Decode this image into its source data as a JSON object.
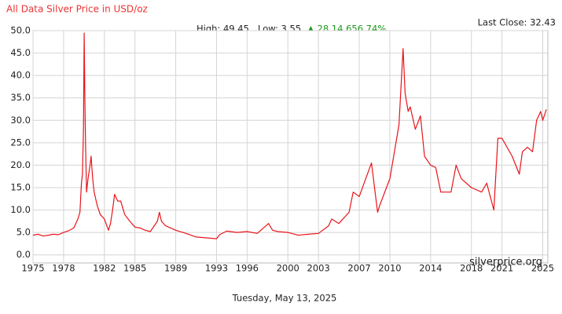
{
  "chart_data": {
    "type": "line",
    "title": "All Data Silver Price in USD/oz",
    "stats": {
      "high": "High: 49.45",
      "low": "Low: 3.55",
      "change": "▲ 28.14 656.74%"
    },
    "last_close": "Last Close: 32.43",
    "watermark": "silverprice.org",
    "date": "Tuesday, May 13, 2025",
    "x": [
      1975,
      1975.5,
      1976,
      1976.5,
      1977,
      1977.5,
      1978,
      1978.5,
      1979,
      1979.4,
      1979.6,
      1979.75,
      1979.85,
      1979.95,
      1980.02,
      1980.08,
      1980.15,
      1980.25,
      1980.4,
      1980.6,
      1980.7,
      1980.85,
      1981,
      1981.3,
      1981.6,
      1982,
      1982.4,
      1982.6,
      1982.8,
      1983,
      1983.3,
      1983.6,
      1984,
      1984.5,
      1985,
      1985.5,
      1986,
      1986.5,
      1987.2,
      1987.4,
      1987.6,
      1988,
      1989,
      1990,
      1991,
      1992,
      1993,
      1993.3,
      1994,
      1995,
      1996,
      1997,
      1998.1,
      1998.5,
      1999,
      2000,
      2001,
      2002,
      2003,
      2004,
      2004.3,
      2005,
      2006,
      2006.4,
      2007,
      2008.2,
      2008.8,
      2009,
      2010,
      2010.9,
      2011.3,
      2011.5,
      2011.8,
      2012,
      2012.5,
      2013,
      2013.4,
      2014,
      2014.5,
      2015,
      2016,
      2016.5,
      2017,
      2018,
      2019,
      2019.5,
      2020.2,
      2020.6,
      2021,
      2021.5,
      2022,
      2022.7,
      2023,
      2023.5,
      2024,
      2024.4,
      2024.8,
      2025,
      2025.35
    ],
    "series": [
      {
        "name": "Silver",
        "color": "#e8141a",
        "values": [
          4.4,
          4.6,
          4.2,
          4.4,
          4.6,
          4.5,
          5.0,
          5.4,
          6.0,
          8.0,
          9.5,
          16,
          18,
          28,
          49.45,
          36,
          25,
          14,
          17,
          20,
          22,
          17,
          14,
          11,
          9,
          8,
          5.5,
          7,
          10,
          13.5,
          12,
          12,
          9,
          7.5,
          6.2,
          6.0,
          5.5,
          5.2,
          7.5,
          9.5,
          7.5,
          6.5,
          5.5,
          4.8,
          4.0,
          3.8,
          3.6,
          4.5,
          5.3,
          5.0,
          5.2,
          4.8,
          7.0,
          5.5,
          5.2,
          5.0,
          4.4,
          4.6,
          4.8,
          6.5,
          8.0,
          7.0,
          9.5,
          14,
          13,
          20.5,
          9.5,
          11,
          17,
          29,
          46,
          36,
          32,
          33,
          28,
          31,
          22,
          20,
          19.5,
          14,
          14,
          20,
          17,
          15,
          14,
          16,
          10,
          26,
          26,
          24,
          22,
          18,
          23,
          24,
          23,
          30,
          32,
          30,
          32.43
        ]
      }
    ],
    "xlim": [
      1975,
      2025.5
    ],
    "ylim": [
      -1.8,
      50
    ],
    "xticks": [
      1975,
      1978,
      1982,
      1985,
      1989,
      1993,
      1996,
      2000,
      2003,
      2007,
      2010,
      2014,
      2018,
      2021,
      2025
    ],
    "yticks": [
      {
        "value": 0,
        "label": "0.0"
      },
      {
        "value": 5,
        "label": "5.0"
      },
      {
        "value": 10,
        "label": "10.0"
      },
      {
        "value": 15,
        "label": "15.0"
      },
      {
        "value": 20,
        "label": "20.0"
      },
      {
        "value": 25,
        "label": "25.0"
      },
      {
        "value": 30,
        "label": "30.0"
      },
      {
        "value": 35,
        "label": "35.0"
      },
      {
        "value": 40,
        "label": "40.0"
      },
      {
        "value": 45,
        "label": "45.0"
      },
      {
        "value": 50,
        "label": "50.0"
      }
    ],
    "grid": true
  }
}
